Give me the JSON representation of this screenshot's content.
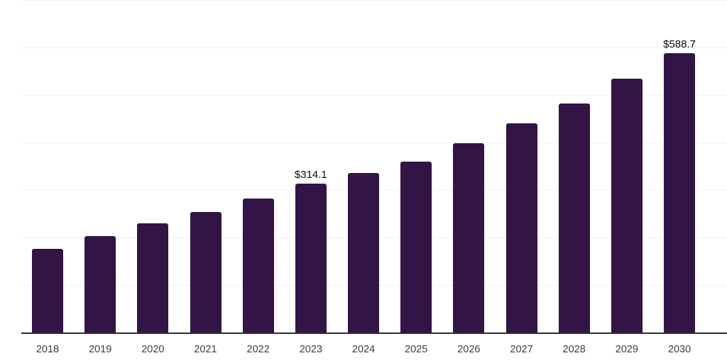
{
  "chart_data": {
    "type": "bar",
    "title": "",
    "xlabel": "",
    "ylabel": "",
    "categories": [
      "2018",
      "2019",
      "2020",
      "2021",
      "2022",
      "2023",
      "2024",
      "2025",
      "2026",
      "2027",
      "2028",
      "2029",
      "2030"
    ],
    "values": [
      176.2,
      203.1,
      230.0,
      253.9,
      282.3,
      314.1,
      335.8,
      359.8,
      398.3,
      440.5,
      482.4,
      534.5,
      588.7
    ],
    "data_labels": {
      "2023": "$314.1",
      "2030": "$588.7"
    },
    "ylim": [
      0,
      700
    ],
    "grid_step": 100,
    "grid_on": true,
    "y_tick_labels_visible": false,
    "legend": "none",
    "colors": {
      "bar": "#331447",
      "gridline": "#f1f1f4",
      "axis_line": "#2e2e2e",
      "x_label_text": "#3d3d3d",
      "value_label_text": "#0a0a0a",
      "background": "#ffffff"
    }
  }
}
